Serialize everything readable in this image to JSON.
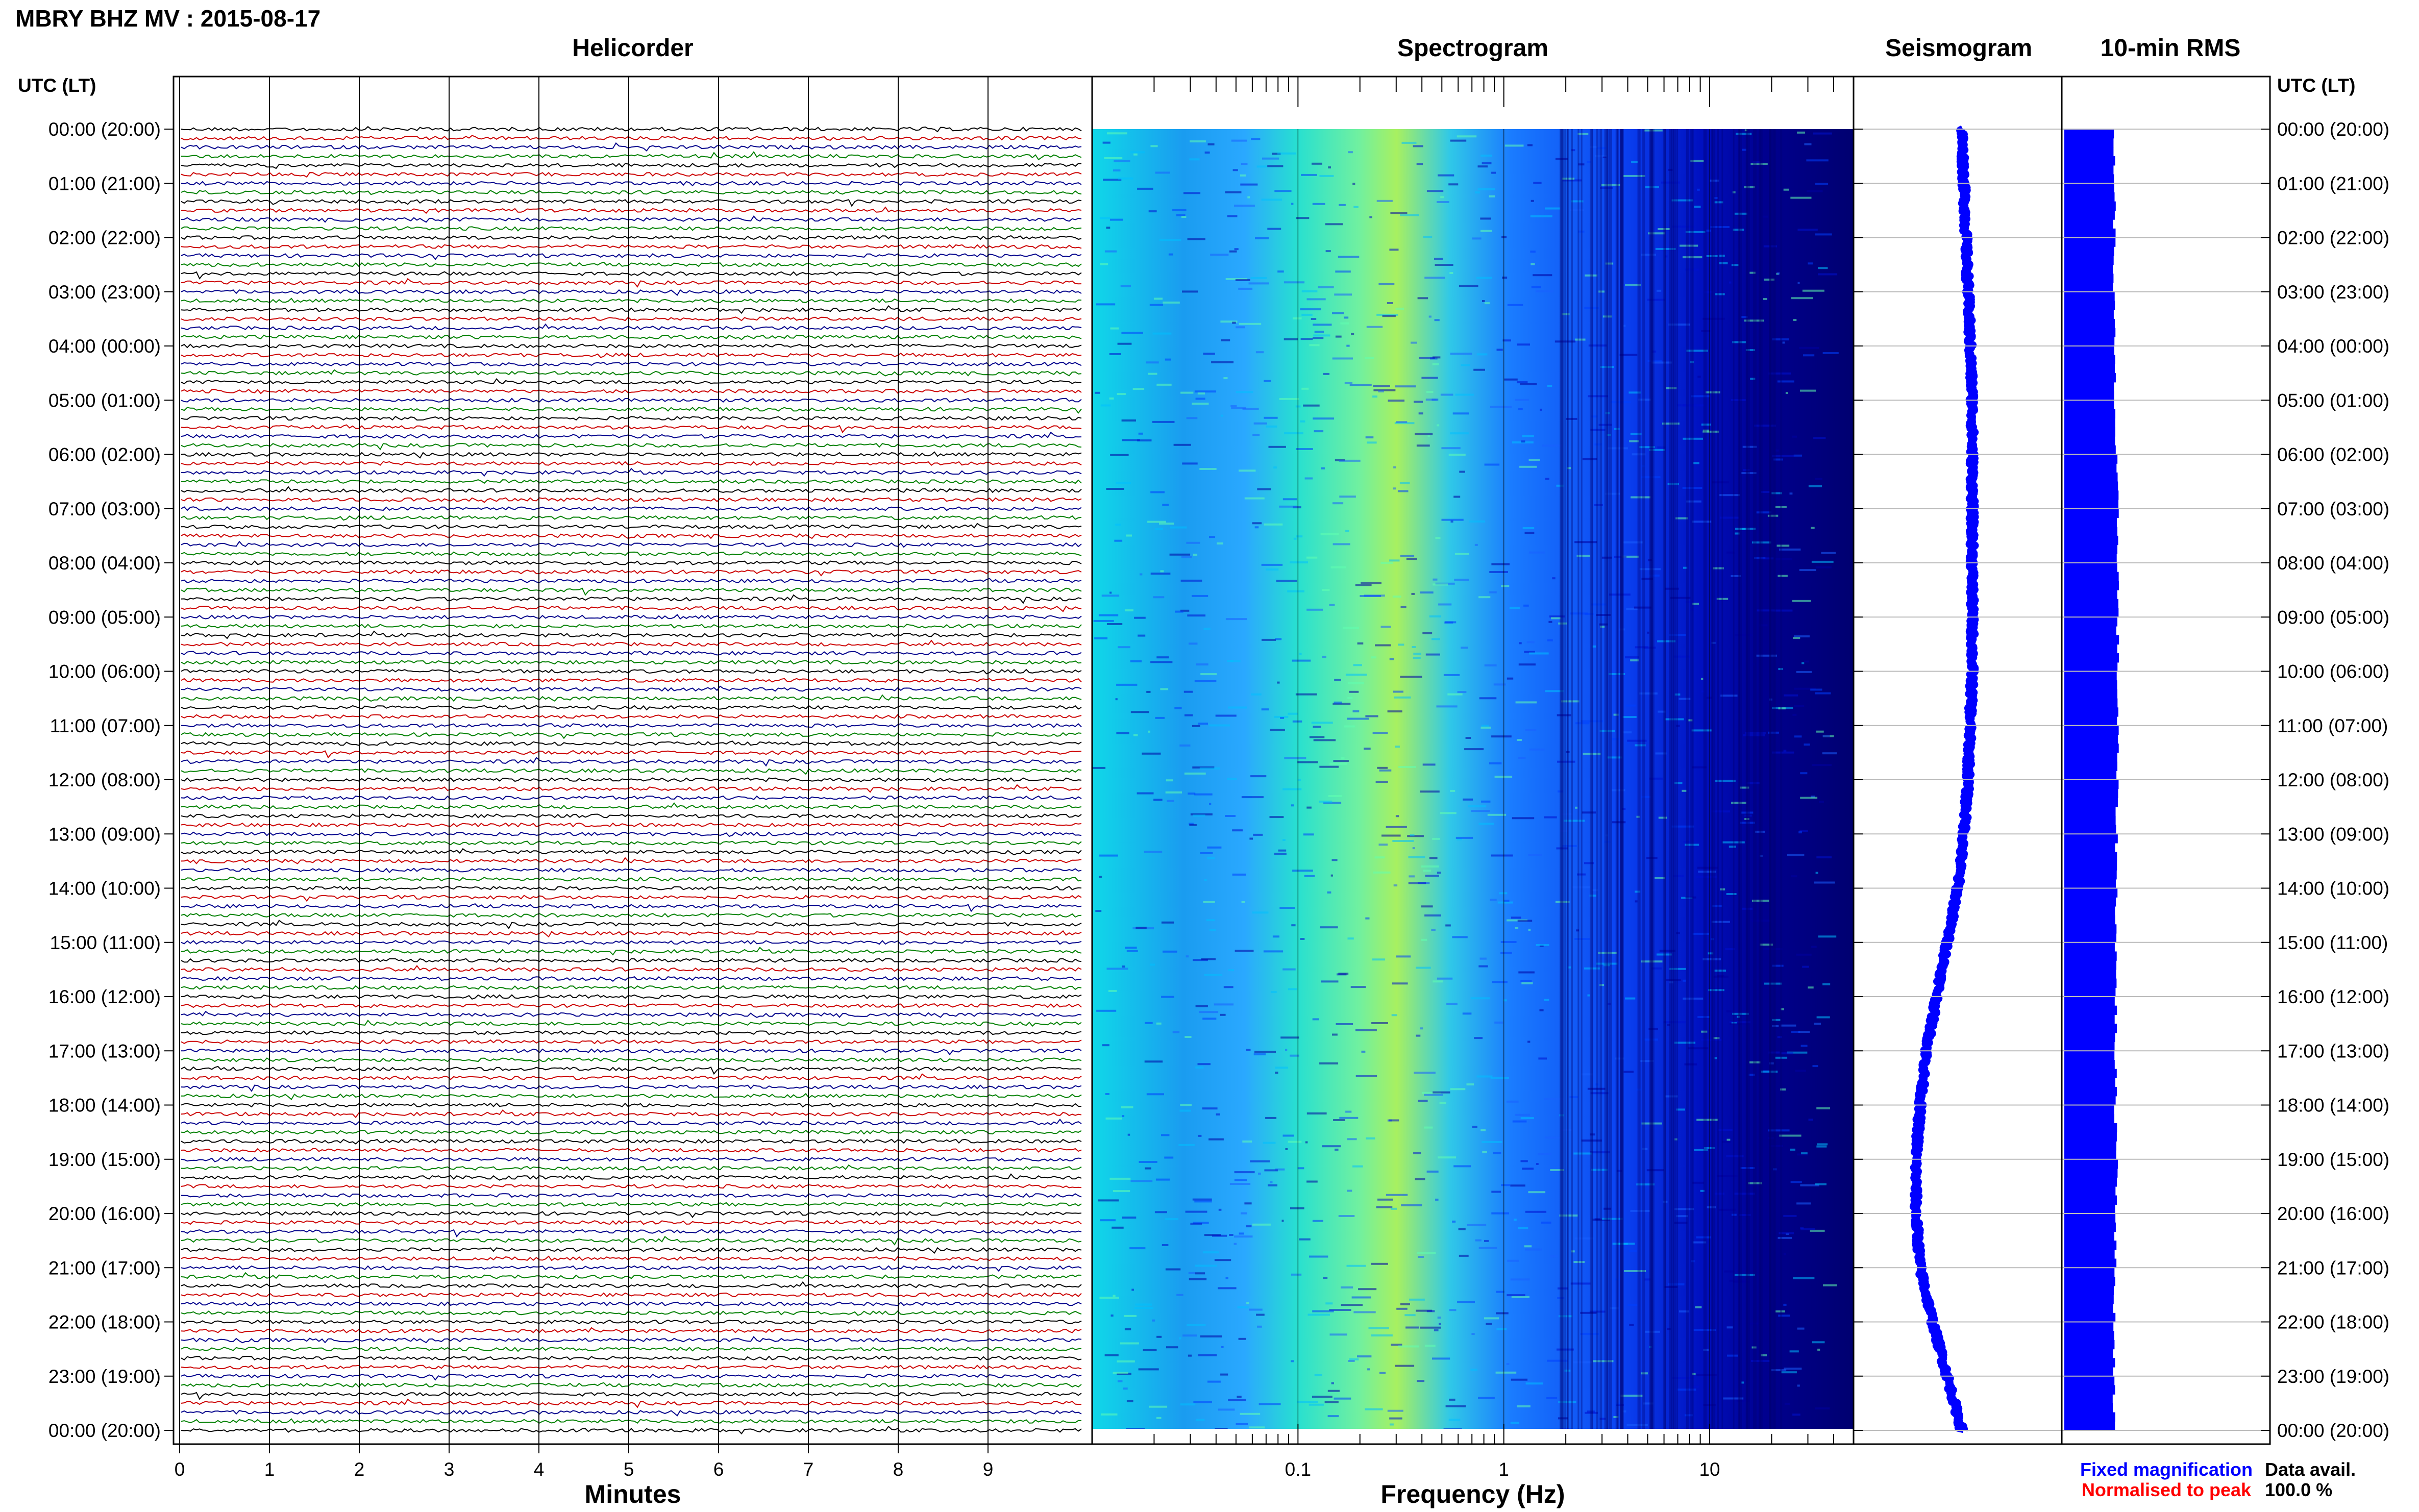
{
  "title": "MBRY BHZ MV : 2015-08-17",
  "panels": {
    "helicorder": "Helicorder",
    "spectrogram": "Spectrogram",
    "seismogram": "Seismogram",
    "rms": "10-min RMS"
  },
  "time_header": "UTC (LT)",
  "time_labels": [
    "00:00 (20:00)",
    "01:00 (21:00)",
    "02:00 (22:00)",
    "03:00 (23:00)",
    "04:00 (00:00)",
    "05:00 (01:00)",
    "06:00 (02:00)",
    "07:00 (03:00)",
    "08:00 (04:00)",
    "09:00 (05:00)",
    "10:00 (06:00)",
    "11:00 (07:00)",
    "12:00 (08:00)",
    "13:00 (09:00)",
    "14:00 (10:00)",
    "15:00 (11:00)",
    "16:00 (12:00)",
    "17:00 (13:00)",
    "18:00 (14:00)",
    "19:00 (15:00)",
    "20:00 (16:00)",
    "21:00 (17:00)",
    "22:00 (18:00)",
    "23:00 (19:00)",
    "00:00 (20:00)"
  ],
  "legend": {
    "fixed": "Fixed magnification",
    "normalised": "Normalised to peak",
    "fixed_color": "#0000ff",
    "normalised_color": "#ff0000"
  },
  "data_avail": {
    "label": "Data avail.",
    "value": "100.0 %"
  },
  "chart_data": [
    {
      "type": "line",
      "title": "Helicorder",
      "xlabel": "Minutes",
      "x_ticks": [
        "0",
        "1",
        "2",
        "3",
        "4",
        "5",
        "6",
        "7",
        "8",
        "9"
      ],
      "xlim": [
        0,
        10
      ],
      "traces_per_hour": 6,
      "trace_colors": [
        "#000000",
        "#cc0000",
        "#00008b",
        "#008000"
      ]
    },
    {
      "type": "heatmap",
      "title": "Spectrogram",
      "xlabel": "Frequency (Hz)",
      "x_scale": "log",
      "xlim": [
        0.01,
        50
      ],
      "x_ticks": [
        "0.1",
        "1",
        "10"
      ],
      "peak_frequency_hz": 0.4,
      "colormap": [
        "#000080",
        "#0000ff",
        "#0080ff",
        "#00ddee",
        "#40f0b0",
        "#c0ff40"
      ]
    },
    {
      "type": "line",
      "title": "Seismogram",
      "description_free": true,
      "hours": [
        0,
        1,
        2,
        3,
        4,
        5,
        6,
        7,
        8,
        9,
        10,
        11,
        12,
        13,
        14,
        15,
        16,
        17,
        18,
        19,
        20,
        21,
        22,
        23,
        24
      ],
      "offset": [
        0.52,
        0.53,
        0.54,
        0.55,
        0.56,
        0.57,
        0.57,
        0.57,
        0.57,
        0.57,
        0.57,
        0.56,
        0.55,
        0.53,
        0.5,
        0.45,
        0.4,
        0.35,
        0.32,
        0.3,
        0.3,
        0.32,
        0.38,
        0.45,
        0.52
      ],
      "color": "#0000ff"
    },
    {
      "type": "bar",
      "title": "10-min RMS",
      "hours": [
        0,
        1,
        2,
        3,
        4,
        5,
        6,
        7,
        8,
        9,
        10,
        11,
        12,
        13,
        14,
        15,
        16,
        17,
        18,
        19,
        20,
        21,
        22,
        23,
        24
      ],
      "relative_level": [
        0.88,
        0.9,
        0.89,
        0.88,
        0.89,
        0.9,
        0.92,
        0.95,
        0.96,
        0.95,
        0.95,
        0.95,
        0.94,
        0.93,
        0.93,
        0.92,
        0.92,
        0.91,
        0.91,
        0.95,
        0.92,
        0.9,
        0.89,
        0.89,
        0.88
      ],
      "color": "#0000ff"
    }
  ]
}
